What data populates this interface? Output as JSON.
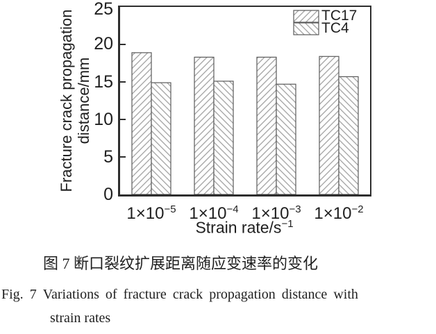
{
  "chart_data": {
    "type": "bar",
    "title": "",
    "xlabel": {
      "base": "Strain rate/s",
      "exp": "−1"
    },
    "ylabel": "Fracture crack propagation distance/mm",
    "ylabel_lines": [
      "Fracture crack propagation",
      "distance/mm"
    ],
    "categories": [
      {
        "base": "1×10",
        "exp": "−5"
      },
      {
        "base": "1×10",
        "exp": "−4"
      },
      {
        "base": "1×10",
        "exp": "−3"
      },
      {
        "base": "1×10",
        "exp": "−2"
      }
    ],
    "series": [
      {
        "name": "TC17",
        "hatch": "forward-diagonal",
        "values": [
          18.9,
          18.3,
          18.3,
          18.4
        ]
      },
      {
        "name": "TC4",
        "hatch": "backward-diagonal",
        "values": [
          14.9,
          15.1,
          14.7,
          15.7
        ]
      }
    ],
    "ylim": [
      0,
      25
    ],
    "yticks": [
      0,
      5,
      10,
      15,
      20,
      25
    ],
    "legend_position": "top-right",
    "grid": false
  },
  "figure": {
    "caption_zh": "图 7  断口裂纹扩展距离随应变速率的变化",
    "caption_en_line1": "Fig. 7 Variations of fracture crack propagation distance with",
    "caption_en_line2": "strain rates"
  },
  "colors": {
    "background": "#ffffff",
    "axis": "#2e2e2e",
    "text": "#1f1f1f",
    "hatch": "#9a9a9a",
    "bar_outline": "#5a5a5a"
  }
}
